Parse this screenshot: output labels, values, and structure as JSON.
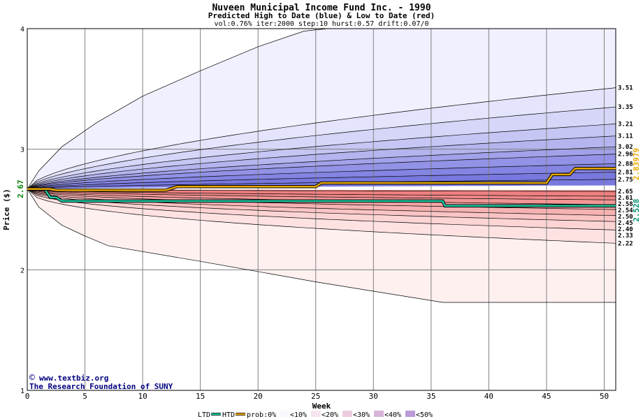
{
  "chart_data": {
    "type": "area",
    "title": "Nuveen Municipal Income Fund Inc. - 1990",
    "subtitle": "Predicted High to Date (blue) &  Low to Date (red)",
    "params": "vol:0.76% iter:2000 step:10 hurst:0.57 drift:0.07/0",
    "xlabel": "Week",
    "ylabel": "Price ($)",
    "xlim": [
      0,
      51
    ],
    "ylim": [
      1,
      4
    ],
    "x_ticks": [
      0,
      5,
      10,
      15,
      20,
      25,
      30,
      35,
      40,
      45,
      50
    ],
    "y_ticks": [
      1,
      2,
      3,
      4
    ],
    "start_price": 2.67,
    "start_price_label": "2.67",
    "htd_last_label": "2.83979",
    "ltd_last_label": "2.528",
    "high_band_levels": [
      3.51,
      3.35,
      3.21,
      3.11,
      3.02,
      2.96,
      2.88,
      2.81,
      2.75
    ],
    "high_band_labels": [
      "3.51",
      "3.35",
      "3.21",
      "3.11",
      "3.02",
      "2.96",
      "2.88",
      "2.81",
      "2.75"
    ],
    "low_band_levels": [
      2.65,
      2.61,
      2.58,
      2.54,
      2.5,
      2.45,
      2.4,
      2.33,
      2.22
    ],
    "low_band_labels": [
      "2.65",
      "2.61",
      "2.58",
      "2.54",
      "2.50",
      "2.45",
      "2.40",
      "2.33",
      "2.22"
    ],
    "outer_high": {
      "x": [
        0,
        1,
        3,
        6,
        10,
        15,
        20,
        24,
        26,
        51
      ],
      "y": [
        2.67,
        2.82,
        3.02,
        3.22,
        3.44,
        3.65,
        3.85,
        3.98,
        4.0,
        4.0
      ]
    },
    "outer_low": {
      "x": [
        0,
        1,
        3,
        5,
        7,
        15,
        25,
        36,
        51
      ],
      "y": [
        2.67,
        2.52,
        2.37,
        2.28,
        2.2,
        2.07,
        1.9,
        1.73,
        1.73
      ]
    },
    "htd_series": {
      "x": [
        0,
        2,
        2.5,
        12,
        13,
        25,
        25.5,
        45,
        45.5,
        47,
        47.5,
        51
      ],
      "y": [
        2.67,
        2.67,
        2.66,
        2.66,
        2.69,
        2.69,
        2.72,
        2.72,
        2.79,
        2.79,
        2.84,
        2.84
      ]
    },
    "ltd_series": {
      "x": [
        0,
        1.5,
        2,
        2.5,
        3,
        36,
        36.2,
        51
      ],
      "y": [
        2.67,
        2.67,
        2.6,
        2.6,
        2.57,
        2.57,
        2.53,
        2.53
      ]
    },
    "legend": {
      "ltd": "LTD",
      "htd": "HTD",
      "prob": "prob:0%",
      "items": [
        "<10%",
        "<20%",
        "<30%",
        "<40%",
        "<50%"
      ]
    },
    "band_colors": {
      "high": [
        "#f0f0ff",
        "#e4e4fc",
        "#d6d6f8",
        "#c6c6f4",
        "#b4b4ee",
        "#a2a2ea",
        "#9292e6",
        "#8484e2",
        "#7878de"
      ],
      "low": [
        "#fff0f0",
        "#fee2e2",
        "#fcd4d4",
        "#fac4c4",
        "#f6b2b2",
        "#f4a4a4",
        "#f29696",
        "#f08888",
        "#ee8080"
      ]
    },
    "colors": {
      "htd": "#e8a800",
      "ltd": "#20c8a0",
      "title": "#000000",
      "watermark": "#000080"
    },
    "legend_swatches": [
      "#f8f8ff",
      "#f6e4f0",
      "#eccce0",
      "#d8b4d8",
      "#bc9ad8"
    ]
  },
  "watermark": {
    "line1": "www.textbiz.org",
    "line2": "The Research Foundation of SUNY"
  }
}
